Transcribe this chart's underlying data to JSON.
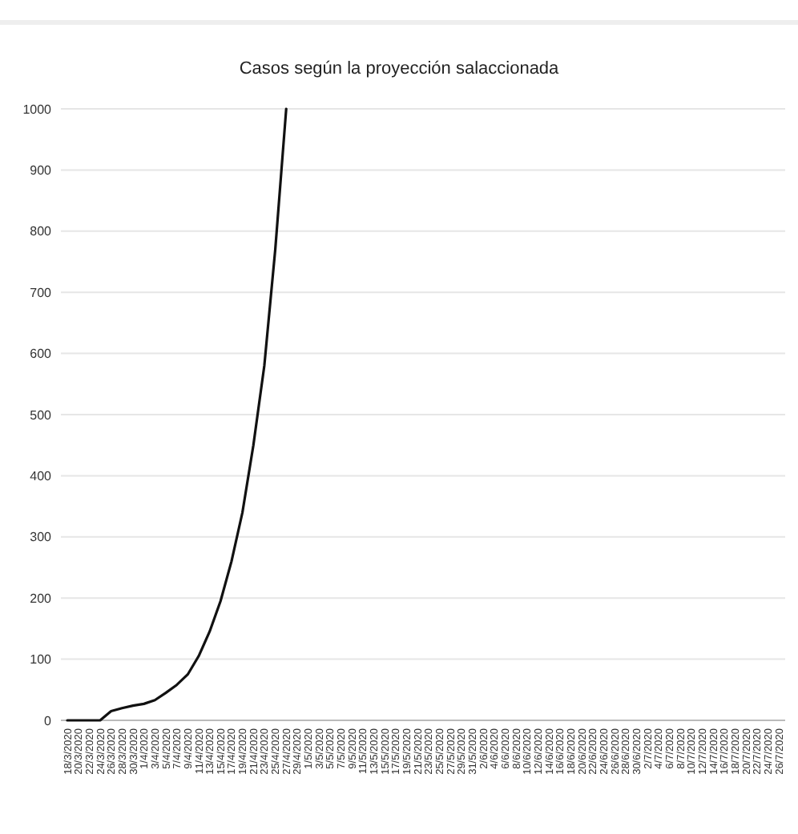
{
  "chart_data": {
    "type": "line",
    "title": "Casos según la proyección salaccionada",
    "categories": [
      "18/3/2020",
      "20/3/2020",
      "22/3/2020",
      "24/3/2020",
      "26/3/2020",
      "28/3/2020",
      "30/3/2020",
      "1/4/2020",
      "3/4/2020",
      "5/4/2020",
      "7/4/2020",
      "9/4/2020",
      "11/4/2020",
      "13/4/2020",
      "15/4/2020",
      "17/4/2020",
      "19/4/2020",
      "21/4/2020",
      "23/4/2020",
      "25/4/2020",
      "27/4/2020",
      "29/4/2020",
      "1/5/2020",
      "3/5/2020",
      "5/5/2020",
      "7/5/2020",
      "9/5/2020",
      "11/5/2020",
      "13/5/2020",
      "15/5/2020",
      "17/5/2020",
      "19/5/2020",
      "21/5/2020",
      "23/5/2020",
      "25/5/2020",
      "27/5/2020",
      "29/5/2020",
      "31/5/2020",
      "2/6/2020",
      "4/6/2020",
      "6/6/2020",
      "8/6/2020",
      "10/6/2020",
      "12/6/2020",
      "14/6/2020",
      "16/6/2020",
      "18/6/2020",
      "20/6/2020",
      "22/6/2020",
      "24/6/2020",
      "26/6/2020",
      "28/6/2020",
      "30/6/2020",
      "2/7/2020",
      "4/7/2020",
      "6/7/2020",
      "8/7/2020",
      "10/7/2020",
      "12/7/2020",
      "14/7/2020",
      "16/7/2020",
      "18/7/2020",
      "20/7/2020",
      "22/7/2020",
      "24/7/2020",
      "26/7/2020"
    ],
    "series": [
      {
        "color": "#111111",
        "values": [
          0,
          0,
          0,
          0,
          15,
          20,
          24,
          27,
          33,
          45,
          58,
          75,
          105,
          145,
          195,
          260,
          340,
          450,
          580,
          770,
          1000,
          null,
          null,
          null,
          null,
          null,
          null,
          null,
          null,
          null,
          null,
          null,
          null,
          null,
          null,
          null,
          null,
          null,
          null,
          null,
          null,
          null,
          null,
          null,
          null,
          null,
          null,
          null,
          null,
          null,
          null,
          null,
          null,
          null,
          null,
          null,
          null,
          null,
          null,
          null,
          null,
          null,
          null,
          null,
          null,
          null
        ]
      }
    ],
    "ylim": [
      0,
      1000
    ],
    "yticks": [
      0,
      100,
      200,
      300,
      400,
      500,
      600,
      700,
      800,
      900,
      1000
    ],
    "grid": "y",
    "line_style": "solid"
  }
}
